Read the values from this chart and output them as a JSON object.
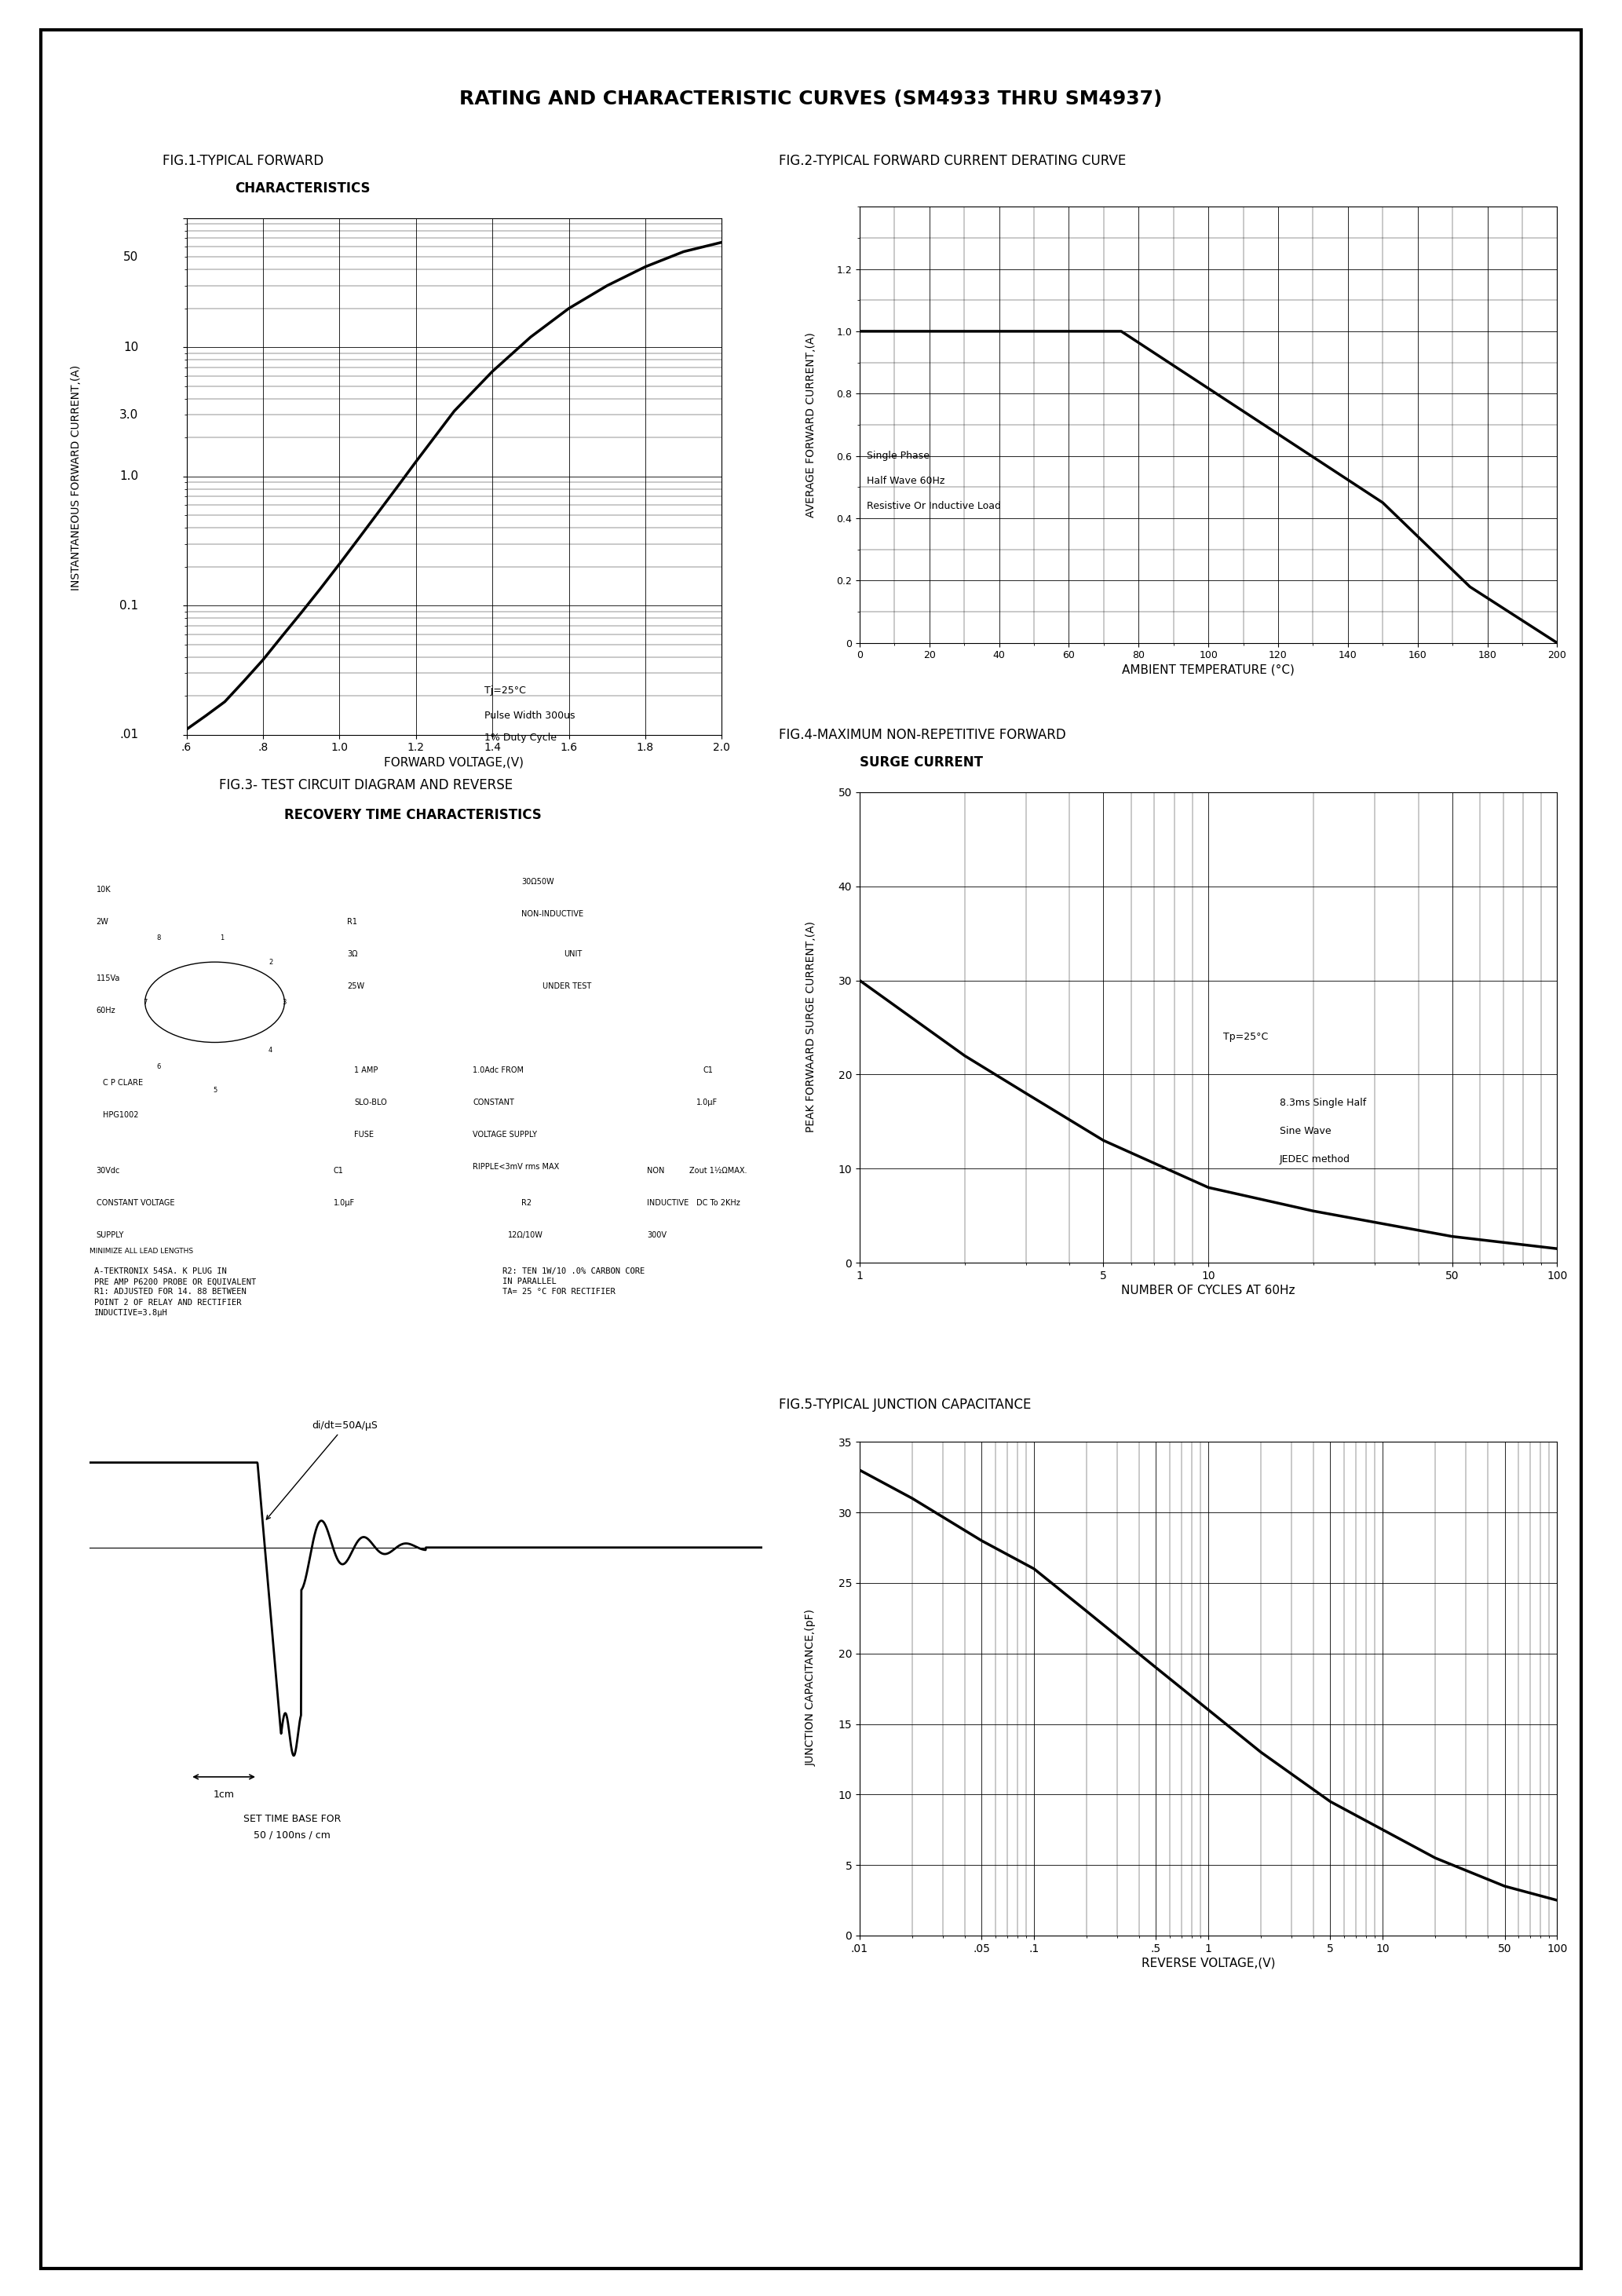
{
  "title": "RATING AND CHARACTERISTIC CURVES (SM4933 THRU SM4937)",
  "fig1_title1": "FIG.1-TYPICAL FORWARD",
  "fig1_title2": "CHARACTERISTICS",
  "fig2_title": "FIG.2-TYPICAL FORWARD CURRENT DERATING CURVE",
  "fig3_title1": "FIG.3- TEST CIRCUIT DIAGRAM AND REVERSE",
  "fig3_title2": "RECOVERY TIME CHARACTERISTICS",
  "fig4_title1": "FIG.4-MAXIMUM NON-REPETITIVE FORWARD",
  "fig4_title2": "SURGE CURRENT",
  "fig5_title": "FIG.5-TYPICAL JUNCTION CAPACITANCE",
  "bg_color": "#ffffff",
  "border_color": "#000000",
  "curve_color": "#000000",
  "grid_color": "#000000",
  "fig1_vf": [
    0.6,
    0.65,
    0.7,
    0.75,
    0.8,
    0.85,
    0.9,
    0.95,
    1.0,
    1.05,
    1.1,
    1.15,
    1.2,
    1.3,
    1.4,
    1.5,
    1.6,
    1.7,
    1.8,
    1.9,
    2.0
  ],
  "fig1_if": [
    0.011,
    0.014,
    0.018,
    0.026,
    0.038,
    0.058,
    0.088,
    0.135,
    0.21,
    0.33,
    0.52,
    0.82,
    1.3,
    3.2,
    6.5,
    12.0,
    20.0,
    30.0,
    42.0,
    55.0,
    65.0
  ],
  "fig2_temp": [
    0,
    50,
    75,
    150,
    175,
    200
  ],
  "fig2_iavg": [
    1.0,
    1.0,
    1.0,
    0.45,
    0.18,
    0.0
  ],
  "fig4_cycles": [
    1,
    2,
    3,
    5,
    10,
    20,
    50,
    100
  ],
  "fig4_isurge": [
    30,
    22,
    18,
    13,
    8,
    5.5,
    2.8,
    1.5
  ],
  "fig5_vr": [
    0.01,
    0.02,
    0.05,
    0.1,
    0.2,
    0.5,
    1.0,
    2.0,
    5.0,
    10,
    20,
    50,
    100
  ],
  "fig5_cj": [
    33,
    31,
    28,
    26,
    23,
    19,
    16,
    13,
    9.5,
    7.5,
    5.5,
    3.5,
    2.5
  ]
}
